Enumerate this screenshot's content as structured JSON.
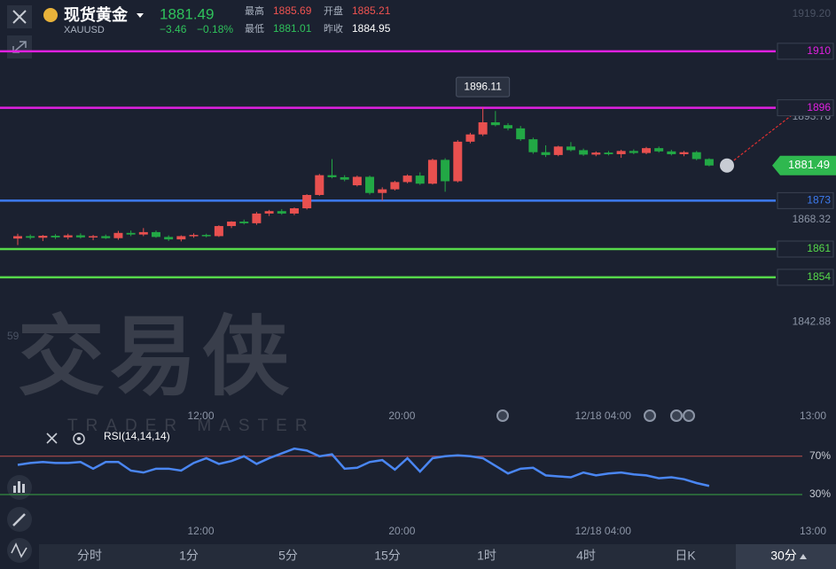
{
  "header": {
    "title": "现货黄金",
    "symbol": "XAUUSD",
    "price": 1881.49,
    "change": "−3.46",
    "change_pct": "−0.18%",
    "stats": [
      {
        "label": "最高",
        "value": 1885.69
      },
      {
        "label": "开盘",
        "value": 1885.21
      },
      {
        "label": "最低",
        "value": 1881.01
      },
      {
        "label": "昨收",
        "value": 1884.95
      }
    ]
  },
  "chart_data": {
    "type": "candlestick",
    "categories": [
      null,
      null,
      null,
      null,
      null,
      null,
      null,
      null,
      null,
      null,
      null,
      null,
      null,
      null,
      "12:00",
      null,
      null,
      null,
      null,
      null,
      null,
      null,
      null,
      null,
      null,
      null,
      null,
      null,
      null,
      null,
      "20:00",
      null,
      null,
      null,
      null,
      null,
      null,
      null,
      null,
      null,
      null,
      null,
      null,
      null,
      null,
      null,
      "12/18 04:00",
      null,
      null,
      null,
      null,
      null,
      null,
      null,
      null,
      null
    ],
    "time_label_right": "13:00",
    "ohlc": [
      [
        1863.6,
        1864.8,
        1862.0,
        1864.2
      ],
      [
        1864.2,
        1864.6,
        1863.4,
        1863.8
      ],
      [
        1863.8,
        1864.5,
        1863.0,
        1864.3
      ],
      [
        1864.3,
        1864.7,
        1863.5,
        1863.9
      ],
      [
        1863.9,
        1864.8,
        1863.4,
        1864.4
      ],
      [
        1864.4,
        1864.9,
        1863.6,
        1863.9
      ],
      [
        1863.9,
        1864.5,
        1863.2,
        1864.2
      ],
      [
        1864.2,
        1864.6,
        1863.5,
        1863.7
      ],
      [
        1863.7,
        1865.5,
        1863.3,
        1865.0
      ],
      [
        1865.0,
        1865.6,
        1864.2,
        1864.6
      ],
      [
        1864.6,
        1866.2,
        1864.2,
        1865.2
      ],
      [
        1865.2,
        1865.6,
        1863.8,
        1864.0
      ],
      [
        1864.0,
        1864.4,
        1863.0,
        1863.4
      ],
      [
        1863.4,
        1864.4,
        1862.9,
        1864.2
      ],
      [
        1864.2,
        1864.9,
        1863.8,
        1864.5
      ],
      [
        1864.5,
        1864.8,
        1863.9,
        1864.2
      ],
      [
        1864.2,
        1866.9,
        1864.0,
        1866.7
      ],
      [
        1866.7,
        1867.9,
        1866.2,
        1867.8
      ],
      [
        1867.8,
        1868.3,
        1867.1,
        1867.4
      ],
      [
        1867.4,
        1870.2,
        1867.0,
        1869.8
      ],
      [
        1869.8,
        1870.7,
        1869.2,
        1870.4
      ],
      [
        1870.4,
        1870.9,
        1869.5,
        1869.8
      ],
      [
        1869.8,
        1871.3,
        1869.4,
        1871.1
      ],
      [
        1871.1,
        1874.6,
        1870.8,
        1874.4
      ],
      [
        1874.4,
        1879.6,
        1874.2,
        1879.3
      ],
      [
        1879.3,
        1883.3,
        1878.5,
        1878.8
      ],
      [
        1878.8,
        1879.3,
        1877.8,
        1878.2
      ],
      [
        1876.8,
        1879.2,
        1876.5,
        1878.9
      ],
      [
        1878.9,
        1879.2,
        1874.5,
        1874.9
      ],
      [
        1874.9,
        1876.3,
        1873.0,
        1875.8
      ],
      [
        1875.8,
        1877.9,
        1875.5,
        1877.6
      ],
      [
        1877.6,
        1879.5,
        1877.3,
        1879.2
      ],
      [
        1879.2,
        1880.0,
        1876.9,
        1877.2
      ],
      [
        1877.2,
        1883.4,
        1877.0,
        1883.1
      ],
      [
        1883.1,
        1883.5,
        1875.2,
        1877.8
      ],
      [
        1877.8,
        1888.0,
        1877.5,
        1887.6
      ],
      [
        1887.6,
        1889.8,
        1887.2,
        1889.4
      ],
      [
        1889.4,
        1896.11,
        1889.0,
        1892.4
      ],
      [
        1892.4,
        1895.2,
        1891.4,
        1891.7
      ],
      [
        1891.7,
        1892.2,
        1890.4,
        1890.9
      ],
      [
        1890.9,
        1891.5,
        1887.8,
        1888.2
      ],
      [
        1888.2,
        1888.6,
        1884.6,
        1885.0
      ],
      [
        1885.0,
        1886.7,
        1883.8,
        1884.3
      ],
      [
        1884.3,
        1886.6,
        1884.0,
        1886.4
      ],
      [
        1886.4,
        1887.5,
        1885.2,
        1885.5
      ],
      [
        1885.5,
        1885.9,
        1884.1,
        1884.4
      ],
      [
        1884.4,
        1885.2,
        1884.0,
        1884.9
      ],
      [
        1884.9,
        1885.3,
        1884.2,
        1884.5
      ],
      [
        1884.5,
        1885.6,
        1883.6,
        1885.3
      ],
      [
        1885.3,
        1885.7,
        1884.5,
        1884.8
      ],
      [
        1884.8,
        1886.3,
        1884.5,
        1886.0
      ],
      [
        1886.0,
        1886.4,
        1884.9,
        1885.2
      ],
      [
        1885.2,
        1885.6,
        1884.2,
        1884.5
      ],
      [
        1884.5,
        1885.3,
        1884.0,
        1885.0
      ],
      [
        1885.0,
        1885.3,
        1883.0,
        1883.3
      ],
      [
        1883.3,
        1883.5,
        1881.5,
        1881.7
      ]
    ],
    "up_color": "#e8504f",
    "down_color": "#22a845",
    "ylim": [
      1822.8,
      1922.7
    ],
    "yticks": [
      {
        "value": 1919.2,
        "label": "1919.20"
      },
      {
        "value": 1893.76,
        "label": "1893.76"
      },
      {
        "value": 1868.32,
        "label": "1868.32"
      },
      {
        "value": 1842.88,
        "label": "1842.88"
      }
    ],
    "partial_label": "59",
    "levels": [
      {
        "value": 1910,
        "color": "#e020e0"
      },
      {
        "value": 1896,
        "color": "#e020e0"
      },
      {
        "value": 1873,
        "color": "#3d7bf0"
      },
      {
        "value": 1861,
        "color": "#56d94a"
      },
      {
        "value": 1854,
        "color": "#56d94a"
      }
    ],
    "rsi": {
      "label": "RSI(14,14,14)",
      "color": "#4a86f2",
      "ylim": [
        -9,
        93
      ],
      "yticks": [
        {
          "value": 70,
          "label": "70%",
          "color": "#c0504d"
        },
        {
          "value": 30,
          "label": "30%",
          "color": "#3aa845"
        }
      ],
      "values": [
        61,
        63,
        64,
        63,
        63,
        64,
        57,
        64,
        64,
        55,
        53,
        57,
        57,
        55,
        63,
        68,
        62,
        65,
        70,
        62,
        68,
        73,
        78,
        76,
        70,
        72,
        57,
        58,
        64,
        66,
        56,
        68,
        54,
        68,
        70,
        71,
        70,
        68,
        60,
        52,
        57,
        58,
        50,
        49,
        48,
        53,
        50,
        52,
        53,
        51,
        50,
        47,
        48,
        46,
        42,
        39
      ]
    }
  },
  "watermark": {
    "title": "交易侠",
    "subtitle": "TRADER MASTER"
  },
  "tabs": [
    "分时",
    "1分",
    "5分",
    "15分",
    "1时",
    "4时",
    "日K",
    "30分"
  ]
}
